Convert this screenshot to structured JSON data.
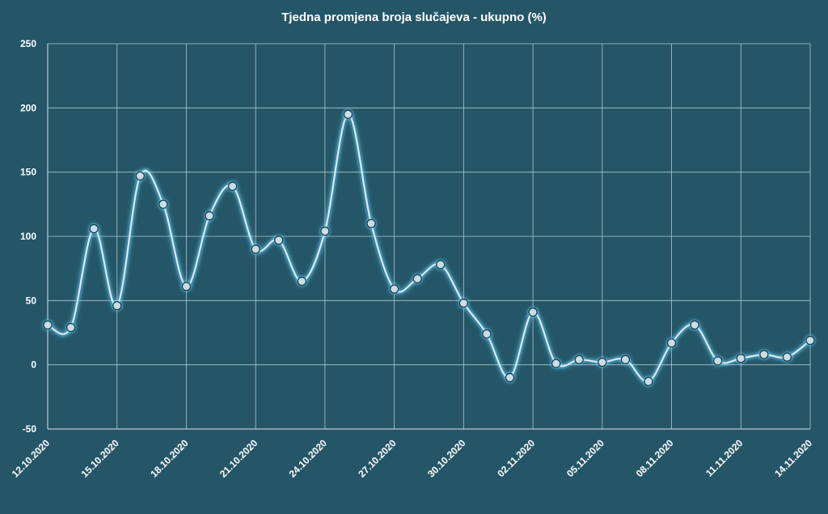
{
  "chart_data": {
    "type": "line",
    "title": "Tjedna promjena broja slučajeva - ukupno (%)",
    "xlabel": "",
    "ylabel": "",
    "ylim": [
      -50,
      250
    ],
    "y_ticks": [
      -50,
      0,
      50,
      100,
      150,
      200,
      250
    ],
    "x_tick_labels": [
      "12.10.2020",
      "15.10.2020",
      "18.10.2020",
      "21.10.2020",
      "24.10.2020",
      "27.10.2020",
      "30.10.2020",
      "02.11.2020",
      "05.11.2020",
      "08.11.2020",
      "11.11.2020",
      "14.11.2020"
    ],
    "x": [
      "12.10.2020",
      "13.10.2020",
      "14.10.2020",
      "15.10.2020",
      "16.10.2020",
      "17.10.2020",
      "18.10.2020",
      "19.10.2020",
      "20.10.2020",
      "21.10.2020",
      "22.10.2020",
      "23.10.2020",
      "24.10.2020",
      "25.10.2020",
      "26.10.2020",
      "27.10.2020",
      "28.10.2020",
      "29.10.2020",
      "30.10.2020",
      "31.10.2020",
      "01.11.2020",
      "02.11.2020",
      "03.11.2020",
      "04.11.2020",
      "05.11.2020",
      "06.11.2020",
      "07.11.2020",
      "08.11.2020",
      "09.11.2020",
      "10.11.2020",
      "11.11.2020",
      "12.11.2020",
      "13.11.2020",
      "14.11.2020"
    ],
    "values": [
      31,
      29,
      106,
      46,
      147,
      125,
      61,
      116,
      139,
      90,
      97,
      65,
      104,
      195,
      110,
      59,
      67,
      78,
      48,
      24,
      -10,
      41,
      1,
      4,
      2,
      4,
      -13,
      17,
      31,
      3,
      5,
      8,
      6,
      19
    ],
    "grid": true,
    "legend": "none",
    "line_color": "#d8eef7",
    "glow_color": "#6fd8ff",
    "background_color": "#245668"
  }
}
